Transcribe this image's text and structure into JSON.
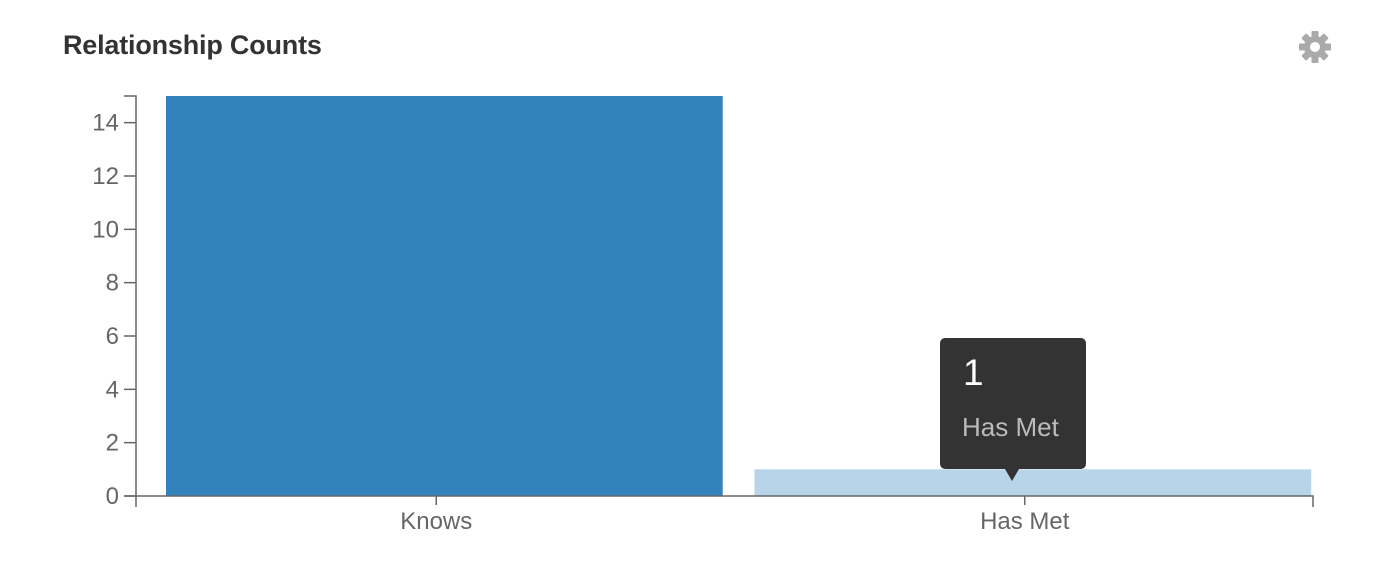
{
  "header": {
    "title": "Relationship Counts",
    "settings_icon": "gear-icon"
  },
  "chart_data": {
    "type": "bar",
    "categories": [
      "Knows",
      "Has Met"
    ],
    "values": [
      15,
      1
    ],
    "ylim": [
      0,
      15
    ],
    "yticks": [
      "0",
      "2",
      "4",
      "6",
      "8",
      "10",
      "12",
      "14"
    ],
    "colors": [
      "#3182bd",
      "#b7d4e9"
    ],
    "grid": false,
    "legend": "none"
  },
  "tooltip": {
    "value": "1",
    "label": "Has Met"
  },
  "colors": {
    "title": "#333333",
    "axis": "#666666",
    "tooltip_bg": "#333333",
    "icon": "#aaaaaa"
  }
}
